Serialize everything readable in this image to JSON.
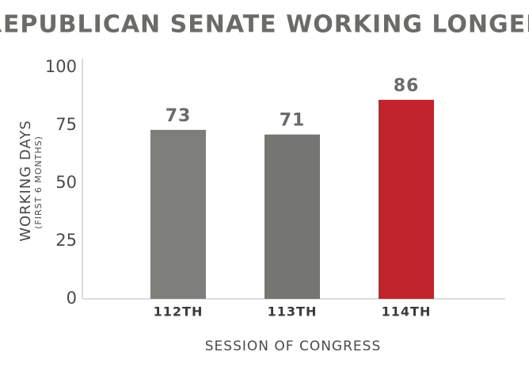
{
  "chart_data": {
    "type": "bar",
    "title": "REPUBLICAN SENATE WORKING LONGER",
    "y_label": "WORKING DAYS",
    "y_sublabel": "(FIRST 6 MONTHS)",
    "x_label": "SESSION OF CONGRESS",
    "categories": [
      "112TH",
      "113TH",
      "114TH"
    ],
    "values": [
      73,
      71,
      86
    ],
    "colors": [
      "#7e7e7a",
      "#757571",
      "#c1242a"
    ],
    "ylim": [
      0,
      100
    ],
    "yticks": [
      0,
      25,
      50,
      75,
      100
    ],
    "grid": false
  }
}
